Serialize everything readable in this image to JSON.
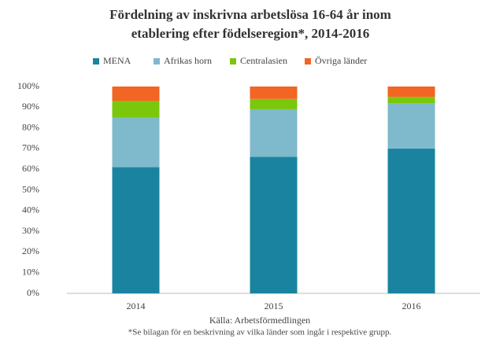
{
  "chart_data": {
    "type": "stacked_bar",
    "title": [
      "Fördelning av inskrivna arbetslösa 16-64 år inom",
      "etablering efter födelseregion*, 2014-2016"
    ],
    "categories": [
      "2014",
      "2015",
      "2016"
    ],
    "series": [
      {
        "name": "MENA",
        "color": "#1a84a0",
        "values": [
          61,
          66,
          70
        ]
      },
      {
        "name": "Afrikas horn",
        "color": "#7fb9cc",
        "values": [
          24,
          23,
          22
        ]
      },
      {
        "name": "Centralasien",
        "color": "#7ac70c",
        "values": [
          8,
          5,
          3
        ]
      },
      {
        "name": "Övriga länder",
        "color": "#f26522",
        "values": [
          7,
          6,
          5
        ]
      }
    ],
    "ylim": [
      0,
      100
    ],
    "yticks": [
      {
        "value": 0,
        "label": "0%"
      },
      {
        "value": 10,
        "label": "10%"
      },
      {
        "value": 20,
        "label": "20%"
      },
      {
        "value": 30,
        "label": "30%"
      },
      {
        "value": 40,
        "label": "40%"
      },
      {
        "value": 50,
        "label": "50%"
      },
      {
        "value": 60,
        "label": "60%"
      },
      {
        "value": 70,
        "label": "70%"
      },
      {
        "value": 80,
        "label": "80%"
      },
      {
        "value": 90,
        "label": "90%"
      },
      {
        "value": 100,
        "label": "100%"
      }
    ],
    "legend": "top",
    "source": "Källa: Arbetsförmedlingen",
    "note": "*Se bilagan för en beskrivning av vilka länder som ingår i respektive grupp."
  }
}
